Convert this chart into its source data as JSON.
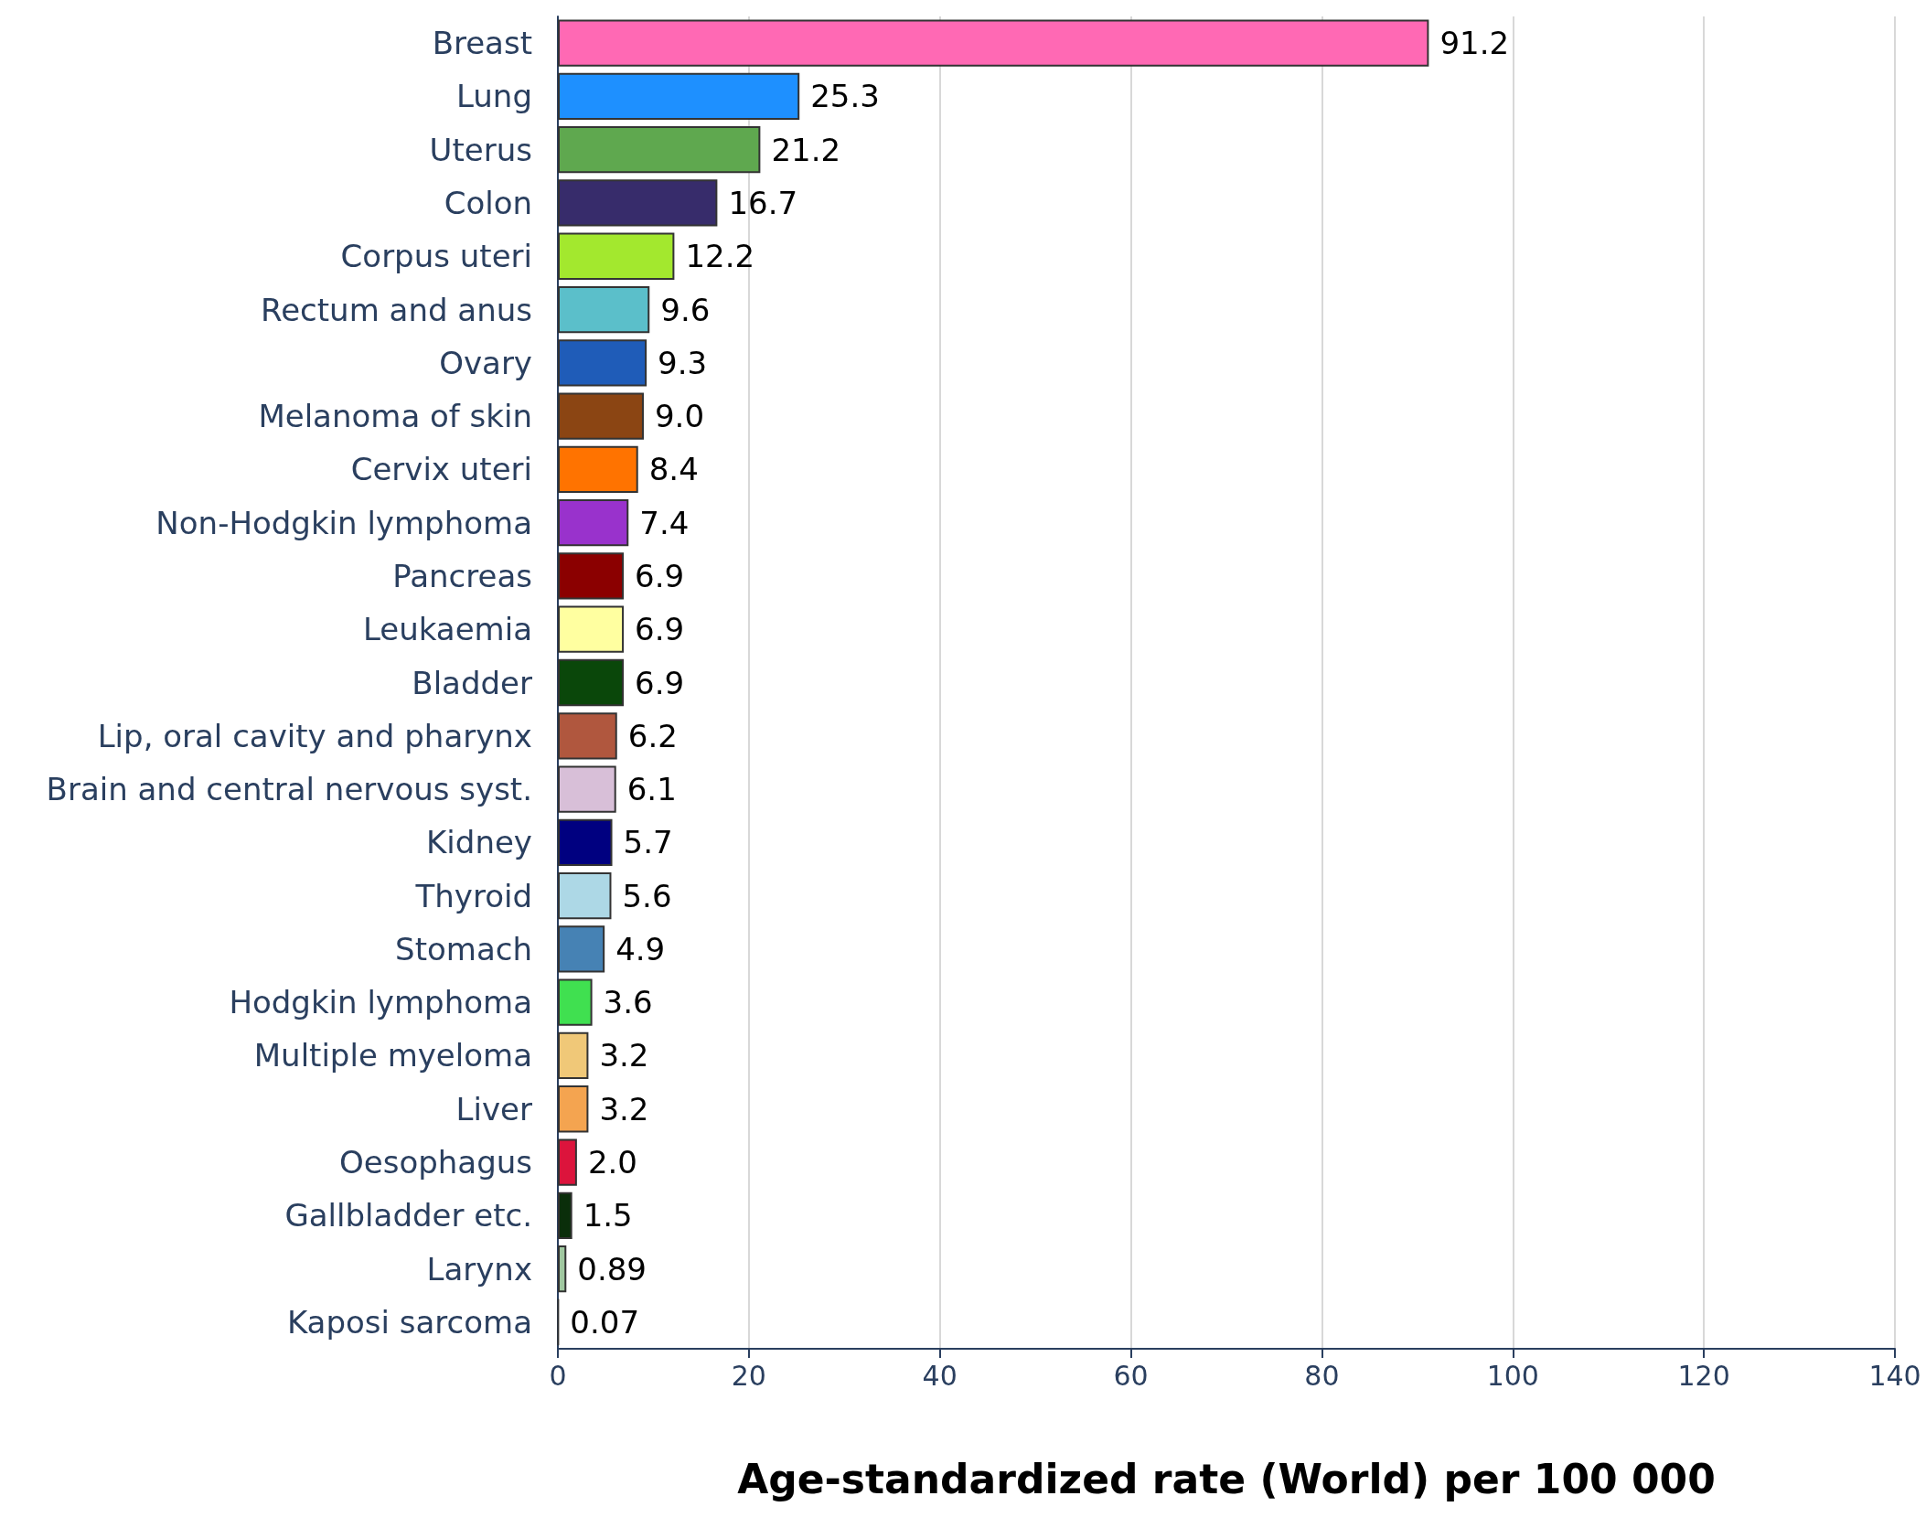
{
  "chart_data": {
    "type": "bar",
    "orientation": "horizontal",
    "xlabel": "Age-standardized rate (World) per 100 000",
    "categories": [
      "Breast",
      "Lung",
      "Uterus",
      "Colon",
      "Corpus uteri",
      "Rectum and anus",
      "Ovary",
      "Melanoma of skin",
      "Cervix uteri",
      "Non-Hodgkin lymphoma",
      "Pancreas",
      "Leukaemia",
      "Bladder",
      "Lip, oral cavity and pharynx",
      "Brain and central nervous syst.",
      "Kidney",
      "Thyroid",
      "Stomach",
      "Hodgkin lymphoma",
      "Multiple myeloma",
      "Liver",
      "Oesophagus",
      "Gallbladder etc.",
      "Larynx",
      "Kaposi sarcoma"
    ],
    "values": [
      91.2,
      25.3,
      21.2,
      16.7,
      12.2,
      9.6,
      9.3,
      9.0,
      8.4,
      7.4,
      6.9,
      6.9,
      6.9,
      6.2,
      6.1,
      5.7,
      5.6,
      4.9,
      3.6,
      3.2,
      3.2,
      2.0,
      1.5,
      0.89,
      0.07
    ],
    "value_labels": [
      "91.2",
      "25.3",
      "21.2",
      "16.7",
      "12.2",
      "9.6",
      "9.3",
      "9.0",
      "8.4",
      "7.4",
      "6.9",
      "6.9",
      "6.9",
      "6.2",
      "6.1",
      "5.7",
      "5.6",
      "4.9",
      "3.6",
      "3.2",
      "3.2",
      "2.0",
      "1.5",
      "0.89",
      "0.07"
    ],
    "colors": [
      "#ff69b4",
      "#1e90ff",
      "#5fa84f",
      "#372c6b",
      "#a3e82e",
      "#5bbfca",
      "#1f5cb8",
      "#8b4513",
      "#ff7300",
      "#9932cc",
      "#8b0000",
      "#ffffa0",
      "#0a470a",
      "#b0573e",
      "#d8bfd8",
      "#000080",
      "#add8e6",
      "#4682b4",
      "#40e050",
      "#f0c878",
      "#f4a450",
      "#dc143c",
      "#0a2e0a",
      "#a0c8a0",
      "#333333"
    ],
    "xlim": [
      0,
      140
    ],
    "xticks": [
      0,
      20,
      40,
      60,
      80,
      100,
      120,
      140
    ],
    "grid": "x"
  }
}
